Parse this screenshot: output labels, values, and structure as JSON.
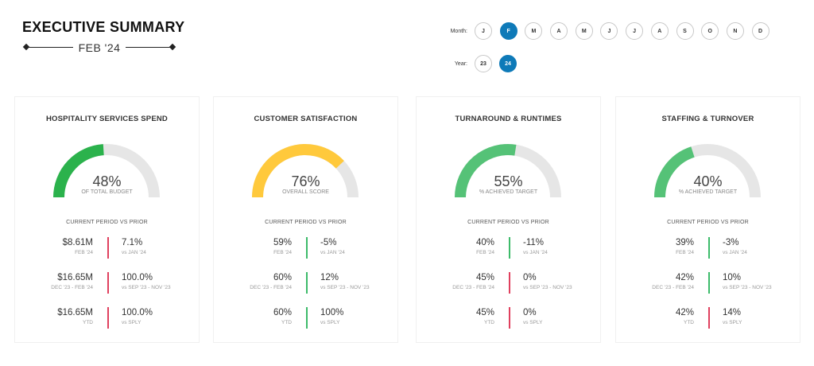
{
  "header": {
    "title": "EXECUTIVE SUMMARY",
    "subtitle": "FEB '24"
  },
  "month_selector": {
    "label": "Month:",
    "options": [
      "J",
      "F",
      "M",
      "A",
      "M",
      "J",
      "J",
      "A",
      "S",
      "O",
      "N",
      "D"
    ],
    "selected_index": 1
  },
  "year_selector": {
    "label": "Year:",
    "options": [
      "23",
      "24"
    ],
    "selected_index": 1
  },
  "colors": {
    "active_pill": "#0e7ab8",
    "gauge_track": "#e6e6e6",
    "bar_red": "#e0405e",
    "bar_green": "#3dbb6a"
  },
  "cards": [
    {
      "title": "HOSPITALITY SERVICES SPEND",
      "gauge": {
        "percent": 48,
        "value": "48%",
        "label": "OF TOTAL BUDGET",
        "color": "#2bb24c"
      },
      "period_header": "CURRENT PERIOD VS PRIOR",
      "metrics": [
        {
          "value": "$8.61M",
          "caption": "FEB '24",
          "change": "7.1%",
          "change_caption": "vs JAN '24",
          "indicator": "red"
        },
        {
          "value": "$16.65M",
          "caption": "DEC '23 - FEB '24",
          "change": "100.0%",
          "change_caption": "vs SEP '23 - NOV '23",
          "indicator": "red"
        },
        {
          "value": "$16.65M",
          "caption": "YTD",
          "change": "100.0%",
          "change_caption": "vs SPLY",
          "indicator": "red"
        }
      ]
    },
    {
      "title": "CUSTOMER SATISFACTION",
      "gauge": {
        "percent": 76,
        "value": "76%",
        "label": "OVERALL SCORE",
        "color": "#ffc93c"
      },
      "period_header": "CURRENT PERIOD VS PRIOR",
      "metrics": [
        {
          "value": "59%",
          "caption": "FEB '24",
          "change": "-5%",
          "change_caption": "vs JAN '24",
          "indicator": "green"
        },
        {
          "value": "60%",
          "caption": "DEC '23 - FEB '24",
          "change": "12%",
          "change_caption": "vs SEP '23 - NOV '23",
          "indicator": "green"
        },
        {
          "value": "60%",
          "caption": "YTD",
          "change": "100%",
          "change_caption": "vs SPLY",
          "indicator": "green"
        }
      ]
    },
    {
      "title": "TURNAROUND & RUNTIMES",
      "gauge": {
        "percent": 55,
        "value": "55%",
        "label": "% ACHIEVED TARGET",
        "color": "#55c277"
      },
      "period_header": "CURRENT PERIOD VS PRIOR",
      "metrics": [
        {
          "value": "40%",
          "caption": "FEB '24",
          "change": "-11%",
          "change_caption": "vs JAN '24",
          "indicator": "green"
        },
        {
          "value": "45%",
          "caption": "DEC '23 - FEB '24",
          "change": "0%",
          "change_caption": "vs SEP '23 - NOV '23",
          "indicator": "red"
        },
        {
          "value": "45%",
          "caption": "YTD",
          "change": "0%",
          "change_caption": "vs SPLY",
          "indicator": "red"
        }
      ]
    },
    {
      "title": "STAFFING & TURNOVER",
      "gauge": {
        "percent": 40,
        "value": "40%",
        "label": "% ACHIEVED TARGET",
        "color": "#55c277"
      },
      "period_header": "CURRENT PERIOD VS PRIOR",
      "metrics": [
        {
          "value": "39%",
          "caption": "FEB '24",
          "change": "-3%",
          "change_caption": "vs JAN '24",
          "indicator": "green"
        },
        {
          "value": "42%",
          "caption": "DEC '23 - FEB '24",
          "change": "10%",
          "change_caption": "vs SEP '23 - NOV '23",
          "indicator": "green"
        },
        {
          "value": "42%",
          "caption": "YTD",
          "change": "14%",
          "change_caption": "vs SPLY",
          "indicator": "red"
        }
      ]
    }
  ]
}
